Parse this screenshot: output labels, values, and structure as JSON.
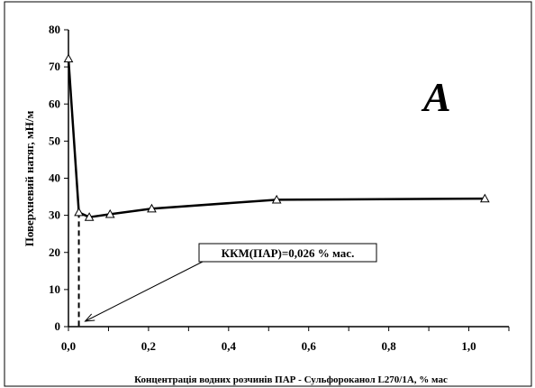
{
  "chart_data": {
    "type": "line",
    "title": "",
    "panel_letter": "A",
    "xlabel": "Концентрація водних розчинів ПАР - Сульфороканол L270/1А, % мас",
    "ylabel": "Поверхневий натяг, мН/м",
    "xlim": [
      0,
      1.1
    ],
    "ylim": [
      0,
      80
    ],
    "x_ticks": [
      "0,0",
      "0,2",
      "0,4",
      "0,6",
      "0,8",
      "1,0"
    ],
    "x_tick_values": [
      0,
      0.2,
      0.4,
      0.6,
      0.8,
      1.0
    ],
    "y_ticks": [
      "0",
      "10",
      "20",
      "30",
      "40",
      "50",
      "60",
      "70",
      "80"
    ],
    "y_tick_values": [
      0,
      10,
      20,
      30,
      40,
      50,
      60,
      70,
      80
    ],
    "grid": false,
    "series": [
      {
        "marker": "open-triangle",
        "color": "#000000",
        "x": [
          0,
          0.026,
          0.052,
          0.104,
          0.208,
          0.52,
          1.04
        ],
        "y": [
          72.2,
          30.8,
          29.5,
          30.3,
          31.8,
          34.2,
          34.5
        ]
      }
    ],
    "annotation": {
      "text": "ККМ(ПАР)=0,026 % мас.",
      "x": 0.026,
      "y": 30.8
    }
  }
}
